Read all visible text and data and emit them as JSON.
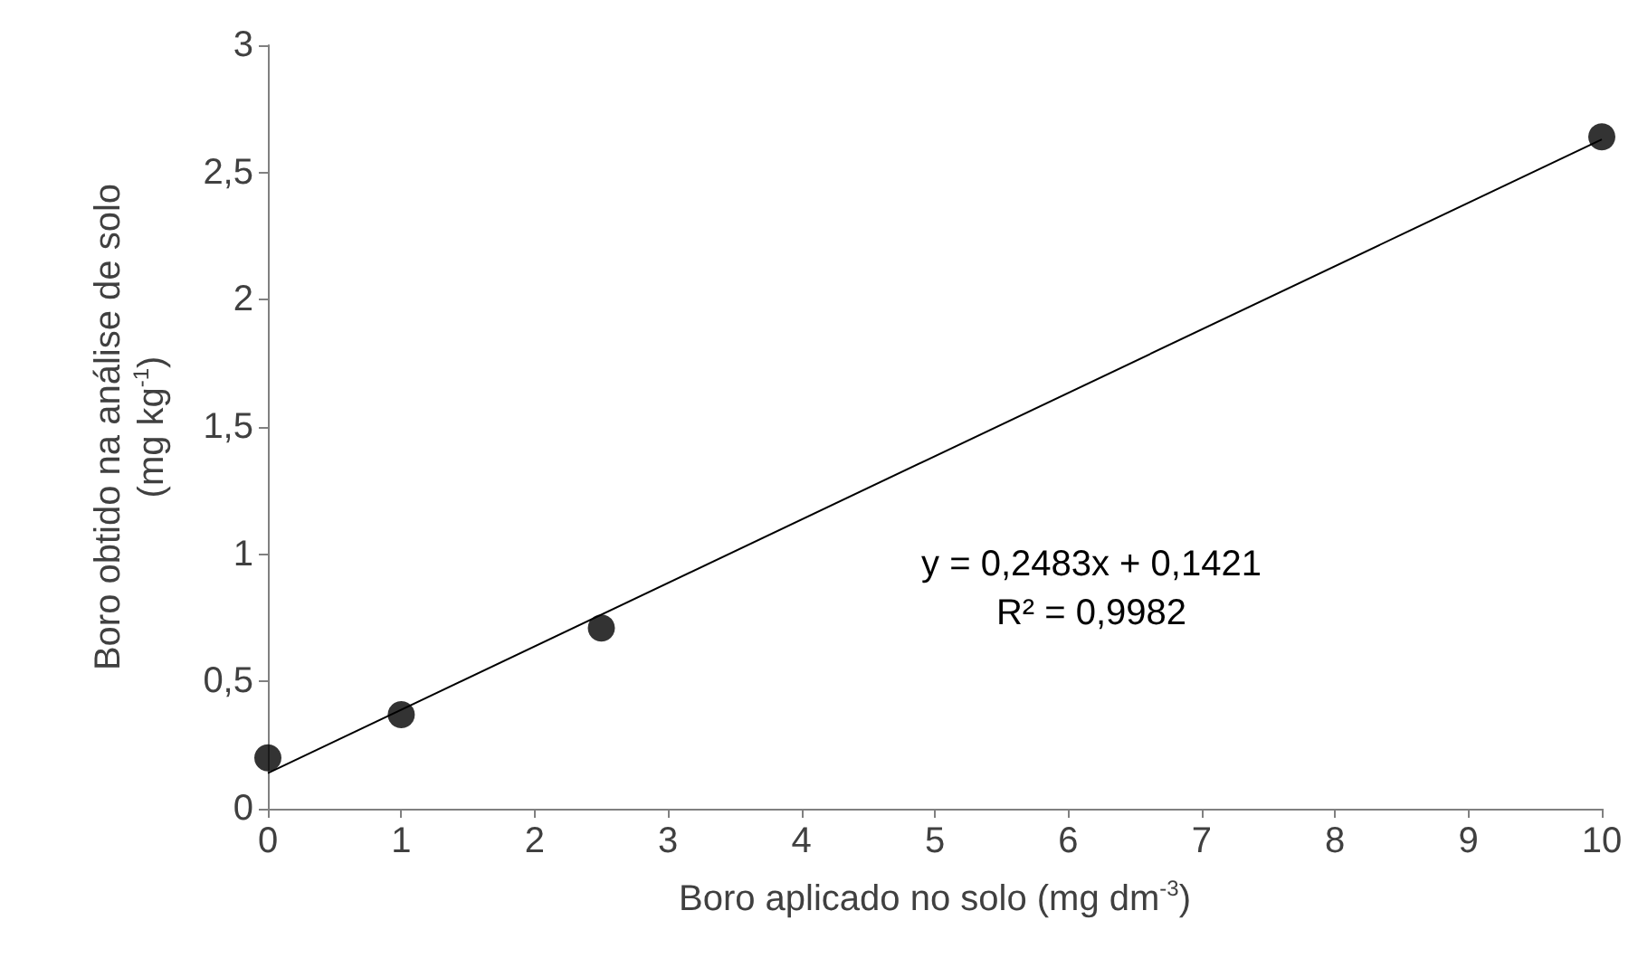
{
  "chart_data": {
    "type": "scatter",
    "xlabel": "Boro aplicado no solo (mg dm$^{-3}$)",
    "ylabel": "Boro obtido na análise de solo (mg kg$^{-1}$)",
    "series": [
      {
        "color": "#000000",
        "x": [
          0,
          1,
          2.5,
          10
        ],
        "values": [
          0.2,
          0.37,
          0.71,
          2.64
        ]
      },
      {
        "type": "line",
        "color": "#000000",
        "x": [
          0,
          10
        ],
        "values": [
          0.14,
          2.63
        ],
        "marker": "none"
      }
    ],
    "xlim": [
      0,
      10
    ],
    "xticks": [
      0,
      1,
      2,
      3,
      4,
      5,
      6,
      7,
      8,
      9,
      10
    ],
    "ylim": [
      0,
      3
    ],
    "yticks": [
      0,
      {
        "value": 0.5,
        "label": "0,5"
      },
      1,
      {
        "value": 1.5,
        "label": "1,5"
      },
      2,
      {
        "value": 2.5,
        "label": "2,5"
      },
      3
    ],
    "marker": "circle",
    "grid": false,
    "annotations": [
      "y = 0,2483x + 0,1421",
      "R² = 0,9982"
    ]
  }
}
